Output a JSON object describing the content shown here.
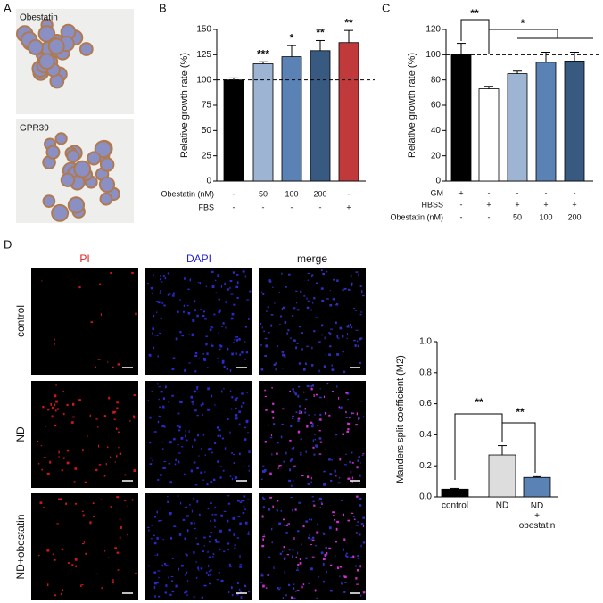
{
  "panels": {
    "labels": [
      "A",
      "B",
      "C",
      "D"
    ],
    "a_images": [
      "Obestatin",
      "GPR39"
    ],
    "d_columns": [
      "PI",
      "DAPI",
      "merge"
    ],
    "d_rows": [
      "control",
      "ND",
      "ND+obestatin"
    ]
  },
  "chart_data": [
    {
      "type": "bar",
      "y_label": "Relative growth rate (%)",
      "values": [
        100,
        116,
        123,
        129,
        137
      ],
      "errors": [
        2,
        2,
        11,
        10,
        12
      ],
      "colors": [
        "#000000",
        "#9db5d3",
        "#5b82b4",
        "#395a80",
        "#c0393b"
      ],
      "significance": [
        null,
        "***",
        "*",
        "**",
        "**"
      ],
      "reference_line": 100,
      "conditions": [
        {
          "label": "Obestatin (nM)",
          "values": [
            "-",
            "50",
            "100",
            "200",
            "-"
          ]
        },
        {
          "label": "FBS",
          "values": [
            "-",
            "-",
            "-",
            "-",
            "+"
          ]
        }
      ],
      "ylim": [
        0,
        150
      ],
      "yticks": [
        0,
        25,
        50,
        75,
        100,
        125,
        150
      ]
    },
    {
      "type": "bar",
      "y_label": "Relative growth rate (%)",
      "values": [
        100,
        73,
        85,
        94,
        95
      ],
      "errors": [
        9,
        2,
        2,
        8,
        7
      ],
      "colors": [
        "#000000",
        "#ffffff",
        "#9db5d3",
        "#5b82b4",
        "#395a80"
      ],
      "reference_line": 100,
      "annotations": [
        "**",
        "*"
      ],
      "conditions": [
        {
          "label": "GM",
          "values": [
            "+",
            "-",
            "-",
            "-",
            "-"
          ]
        },
        {
          "label": "HBSS",
          "values": [
            "-",
            "+",
            "+",
            "+",
            "+"
          ]
        },
        {
          "label": "Obestatin (nM)",
          "values": [
            "-",
            "-",
            "50",
            "100",
            "200"
          ]
        }
      ],
      "ylim": [
        0,
        120
      ],
      "yticks": [
        0,
        20,
        40,
        60,
        80,
        100,
        120
      ]
    },
    {
      "type": "bar",
      "y_label": "Manders split coefficient  (M2)",
      "categories": [
        "control",
        "ND",
        "ND\n+\nobestatin"
      ],
      "values": [
        0.05,
        0.27,
        0.125
      ],
      "errors": [
        0.005,
        0.06,
        0.005
      ],
      "colors": [
        "#000000",
        "#dddddd",
        "#5b82b4"
      ],
      "annotations": [
        "**",
        "**"
      ],
      "ylim": [
        0,
        1
      ],
      "yticks": [
        {
          "value": 0,
          "label": "0.0"
        },
        {
          "value": 0.2,
          "label": "0.2"
        },
        {
          "value": 0.4,
          "label": "0.4"
        },
        {
          "value": 0.6,
          "label": "0.6"
        },
        {
          "value": 0.8,
          "label": "0.8"
        },
        {
          "value": 1,
          "label": "1.0"
        }
      ]
    }
  ]
}
